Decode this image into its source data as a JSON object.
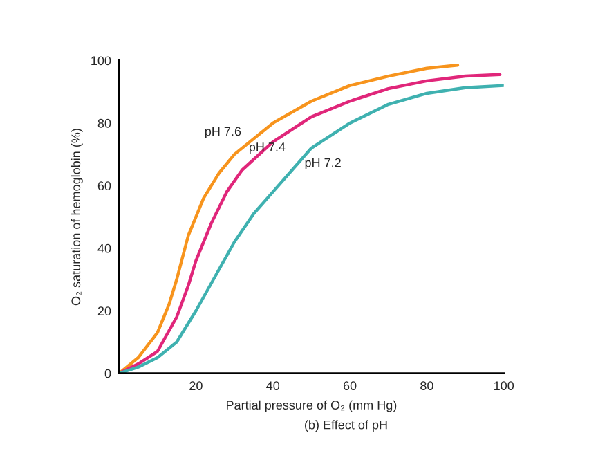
{
  "chart_data": {
    "type": "line",
    "xlabel": "Partial pressure of O₂ (mm Hg)",
    "ylabel": "O₂ saturation of hemoglobin (%)",
    "xlim": [
      0,
      100
    ],
    "ylim": [
      0,
      100
    ],
    "xticks": [
      20,
      40,
      60,
      80,
      100
    ],
    "yticks": [
      0,
      20,
      40,
      60,
      80,
      100
    ],
    "grid": false,
    "legend": false,
    "marker": "none",
    "line_style": "solid",
    "series": [
      {
        "name": "pH 7.6",
        "color": "#f7941d",
        "x": [
          0,
          5,
          10,
          13,
          15,
          18,
          22,
          26,
          30,
          40,
          50,
          60,
          70,
          80,
          88
        ],
        "values": [
          0,
          5,
          13,
          22,
          30,
          44,
          56,
          64,
          70,
          80,
          87,
          92,
          95,
          97.5,
          98.5
        ]
      },
      {
        "name": "pH 7.4",
        "color": "#e0267a",
        "x": [
          0,
          5,
          10,
          15,
          18,
          20,
          24,
          28,
          32,
          40,
          50,
          60,
          70,
          80,
          90,
          99
        ],
        "values": [
          0,
          3,
          7,
          18,
          28,
          36,
          48,
          58,
          65,
          74,
          82,
          87,
          91,
          93.5,
          95,
          95.5
        ]
      },
      {
        "name": "pH 7.2",
        "color": "#3fb1b0",
        "x": [
          0,
          5,
          10,
          15,
          20,
          25,
          30,
          35,
          40,
          50,
          60,
          70,
          80,
          90,
          100
        ],
        "values": [
          0,
          2,
          5,
          10,
          20,
          31,
          42,
          51,
          58,
          72,
          80,
          86,
          89.5,
          91.3,
          92
        ]
      }
    ],
    "annotations": [
      "(b) Effect of pH"
    ]
  }
}
